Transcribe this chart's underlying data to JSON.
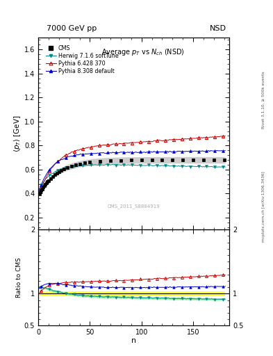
{
  "title_top": "7000 GeV pp",
  "title_top_right": "NSD",
  "plot_title": "Average p$_T$ vs N$_{ch}$ (NSD)",
  "xlabel": "n",
  "ylabel_main": "<p$_T$> [GeV]",
  "ylabel_ratio": "Ratio to CMS",
  "right_label_top": "Rivet 3.1.10, ≥ 500k events",
  "right_label_bottom": "mcplots.cern.ch [arXiv:1306.3436]",
  "watermark": "CMS_2011_S8884919",
  "ylim_main": [
    0.1,
    1.7
  ],
  "ylim_ratio": [
    0.5,
    2.0
  ],
  "xlim": [
    0,
    185
  ],
  "cms_color": "#000000",
  "herwig_color": "#008B8B",
  "pythia6_color": "#CC0000",
  "pythia8_color": "#0000CC",
  "legend_labels": [
    "CMS",
    "Herwig 7.1.6 softTune",
    "Pythia 6.428 370",
    "Pythia 8.308 default"
  ]
}
